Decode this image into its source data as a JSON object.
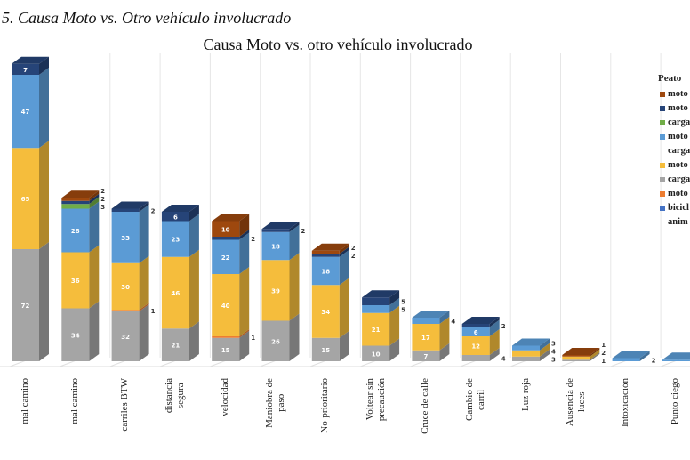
{
  "heading": "5. Causa Moto vs. Otro vehículo involucrado",
  "chart_data": {
    "type": "bar",
    "stacked": true,
    "title": "Causa Moto vs. otro vehículo involucrado",
    "categories": [
      "mal camino",
      "mal camino",
      "carriles BTW",
      "distancia\nsegura",
      "velocidad",
      "Maniobra de\npaso",
      "No-prioritario",
      "Voltear sin\nprecaución",
      "Cruce de calle",
      "Cambio de\ncarril",
      "Luz roja",
      "Ausencia de\nluces",
      "Intoxicación",
      "Punto ciego"
    ],
    "series": [
      {
        "key": "gray",
        "color": "#a5a5a5",
        "values": [
          72,
          34,
          32,
          21,
          15,
          26,
          15,
          10,
          7,
          4,
          3,
          1,
          0,
          0
        ]
      },
      {
        "key": "orange",
        "color": "#ed7d31",
        "values": [
          0,
          0,
          1,
          0,
          1,
          0,
          0,
          0,
          0,
          0,
          0,
          0,
          0,
          0
        ]
      },
      {
        "key": "yellow",
        "color": "#f5bd3c",
        "values": [
          65,
          36,
          30,
          46,
          40,
          39,
          34,
          21,
          17,
          12,
          4,
          2,
          0,
          0
        ]
      },
      {
        "key": "lightblue",
        "color": "#5b9bd5",
        "values": [
          47,
          28,
          33,
          23,
          22,
          18,
          18,
          5,
          4,
          6,
          3,
          0,
          2,
          1
        ]
      },
      {
        "key": "green",
        "color": "#70ad47",
        "values": [
          0,
          3,
          0,
          0,
          0,
          0,
          0,
          0,
          0,
          0,
          0,
          0,
          0,
          0
        ]
      },
      {
        "key": "navy",
        "color": "#264478",
        "values": [
          7,
          2,
          2,
          6,
          2,
          2,
          2,
          5,
          0,
          2,
          0,
          0,
          0,
          0
        ]
      },
      {
        "key": "brown",
        "color": "#9e480e",
        "values": [
          0,
          2,
          0,
          0,
          10,
          0,
          2,
          0,
          0,
          0,
          0,
          1,
          0,
          0
        ]
      }
    ],
    "legend": {
      "placement": "right",
      "title": "Peato",
      "items": [
        {
          "label": "moto",
          "color": "#9e480e"
        },
        {
          "label": "moto",
          "color": "#264478"
        },
        {
          "label": "carga",
          "color": "#70ad47"
        },
        {
          "label": "moto\ncarga",
          "color": "#5b9bd5"
        },
        {
          "label": "moto",
          "color": "#f5bd3c"
        },
        {
          "label": "carga",
          "color": "#a5a5a5"
        },
        {
          "label": "moto",
          "color": "#ed7d31"
        },
        {
          "label": "bicicl\nanim",
          "color": "#4472c4"
        }
      ]
    },
    "grid": true
  }
}
